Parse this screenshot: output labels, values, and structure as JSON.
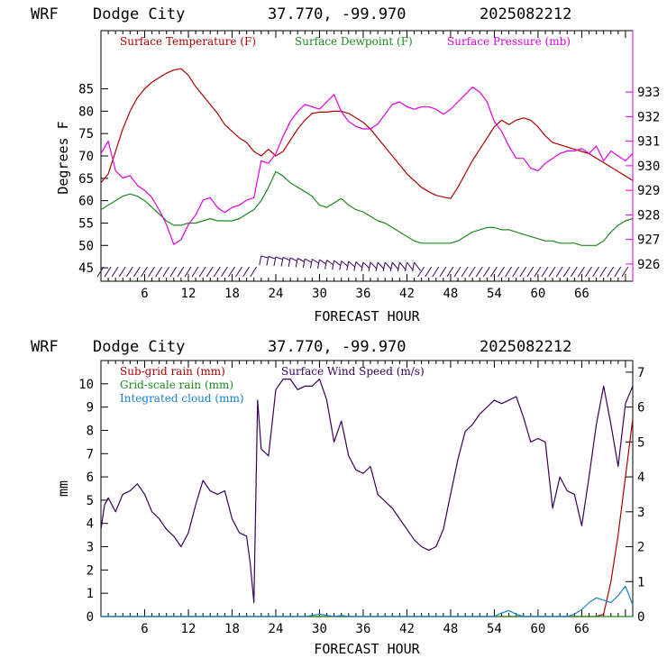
{
  "chart_data": [
    {
      "type": "line",
      "header": {
        "model": "WRF",
        "location": "Dodge City",
        "coords": "37.770, -99.970",
        "run": "2025082212"
      },
      "xlabel": "FORECAST HOUR",
      "ylabel": "Degrees F",
      "xlim": [
        0,
        73
      ],
      "ylim": [
        42,
        98
      ],
      "y2lim": [
        925.3,
        935.5
      ],
      "xticks": [
        6,
        12,
        18,
        24,
        30,
        36,
        42,
        48,
        54,
        60,
        66
      ],
      "xtick_labels": [
        "6",
        "12",
        "18",
        "24",
        "30",
        "36",
        "42",
        "48",
        "54",
        "60",
        "66"
      ],
      "yticks": [
        45,
        50,
        55,
        60,
        65,
        70,
        75,
        80,
        85
      ],
      "ytick_labels": [
        "45",
        "50",
        "55",
        "60",
        "65",
        "70",
        "75",
        "80",
        "85"
      ],
      "y2ticks": [
        926,
        927,
        928,
        929,
        930,
        931,
        932,
        933
      ],
      "y2tick_labels": [
        "926",
        "927",
        "928",
        "929",
        "930",
        "931",
        "932",
        "933"
      ],
      "legend_placement": "top",
      "colors": {
        "temp": "#b00000",
        "dew": "#1c8a1c",
        "pres": "#e000e0",
        "wind": "#3a0058"
      },
      "series": [
        {
          "name": "Surface Temperature (F)",
          "color": "#b00000",
          "axis": "left",
          "x": [
            0,
            1,
            2,
            3,
            4,
            5,
            6,
            7,
            8,
            9,
            10,
            11,
            12,
            13,
            14,
            15,
            16,
            17,
            18,
            19,
            20,
            21,
            22,
            23,
            24,
            25,
            26,
            27,
            28,
            29,
            30,
            31,
            32,
            33,
            34,
            35,
            36,
            37,
            38,
            39,
            40,
            41,
            42,
            43,
            44,
            45,
            46,
            47,
            48,
            49,
            50,
            51,
            52,
            53,
            54,
            55,
            56,
            57,
            58,
            59,
            60,
            61,
            62,
            63,
            64,
            65,
            66,
            67,
            68,
            69,
            70,
            71,
            72,
            73
          ],
          "y": [
            64,
            66,
            71,
            76,
            80,
            83,
            85,
            86.5,
            87.5,
            88.5,
            89.2,
            89.5,
            88,
            85.5,
            83.5,
            81.5,
            79.5,
            77,
            75.5,
            74,
            73,
            71,
            70,
            71.5,
            70,
            71,
            73.5,
            76,
            78,
            79.5,
            79.8,
            79.8,
            80,
            80,
            79.5,
            78.5,
            77.5,
            76,
            74,
            72,
            70,
            68,
            66,
            64.5,
            63,
            62,
            61.2,
            60.8,
            60.5,
            63,
            66,
            69,
            71.5,
            74,
            76.5,
            78,
            77,
            78,
            78.5,
            78,
            76.5,
            74.5,
            73,
            72.5,
            72,
            71.5,
            71,
            70.5,
            69.5,
            68.5,
            67.5,
            66.5,
            65.5,
            64.5
          ]
        },
        {
          "name": "Surface Dewpoint (F)",
          "color": "#1c8a1c",
          "axis": "left",
          "x": [
            0,
            1,
            2,
            3,
            4,
            5,
            6,
            7,
            8,
            9,
            10,
            11,
            12,
            13,
            14,
            15,
            16,
            17,
            18,
            19,
            20,
            21,
            22,
            23,
            24,
            25,
            26,
            27,
            28,
            29,
            30,
            31,
            32,
            33,
            34,
            35,
            36,
            37,
            38,
            39,
            40,
            41,
            42,
            43,
            44,
            45,
            46,
            47,
            48,
            49,
            50,
            51,
            52,
            53,
            54,
            55,
            56,
            57,
            58,
            59,
            60,
            61,
            62,
            63,
            64,
            65,
            66,
            67,
            68,
            69,
            70,
            71,
            72,
            73
          ],
          "y": [
            58,
            59,
            60,
            61,
            61.5,
            61,
            60,
            58.5,
            57,
            55.5,
            54.5,
            54.5,
            55,
            55,
            55.5,
            56,
            55.5,
            55.5,
            55.5,
            56,
            57,
            58,
            60,
            63,
            66.5,
            65.5,
            64,
            63,
            62,
            61,
            59,
            58.5,
            59.5,
            60.5,
            59,
            58,
            57.5,
            56.5,
            55.5,
            55,
            54,
            53,
            52,
            51,
            50.5,
            50.5,
            50.5,
            50.5,
            50.5,
            51,
            52,
            53,
            53.5,
            54,
            54,
            53.5,
            53.5,
            53,
            52.5,
            52,
            51.5,
            51,
            51,
            50.5,
            50.5,
            50.5,
            50,
            50,
            50,
            51,
            53,
            54.5,
            55.5,
            56
          ]
        },
        {
          "name": "Surface Pressure (mb)",
          "color": "#e000e0",
          "axis": "right",
          "x": [
            0,
            1,
            2,
            3,
            4,
            5,
            6,
            7,
            8,
            9,
            10,
            11,
            12,
            13,
            14,
            15,
            16,
            17,
            18,
            19,
            20,
            21,
            22,
            23,
            24,
            25,
            26,
            27,
            28,
            29,
            30,
            31,
            32,
            33,
            34,
            35,
            36,
            37,
            38,
            39,
            40,
            41,
            42,
            43,
            44,
            45,
            46,
            47,
            48,
            49,
            50,
            51,
            52,
            53,
            54,
            55,
            56,
            57,
            58,
            59,
            60,
            61,
            62,
            63,
            64,
            65,
            66,
            67,
            68,
            69,
            70,
            71,
            72,
            73
          ],
          "y": [
            930.5,
            931,
            929.8,
            929.5,
            929.6,
            929.2,
            929,
            928.7,
            928.2,
            927.6,
            926.8,
            927,
            927.6,
            928,
            928.6,
            928.7,
            928.3,
            928.1,
            928.3,
            928.4,
            928.6,
            928.7,
            930.2,
            930.1,
            930.5,
            931.2,
            931.8,
            932.2,
            932.5,
            932.4,
            932.3,
            932.6,
            932.9,
            932.2,
            931.8,
            931.6,
            931.5,
            931.5,
            931.7,
            932.1,
            932.5,
            932.6,
            932.4,
            932.3,
            932.4,
            932.4,
            932.3,
            932.1,
            932.3,
            932.6,
            932.9,
            933.2,
            933.0,
            932.6,
            931.8,
            931.4,
            930.8,
            930.3,
            930.3,
            929.9,
            929.8,
            930.1,
            930.3,
            930.5,
            930.6,
            930.6,
            930.7,
            930.5,
            930.8,
            930.2,
            930.6,
            930.4,
            930.2,
            930.5
          ]
        }
      ],
      "wind_barbs": {
        "color": "#3a0058",
        "hours_low": [
          0,
          1,
          2,
          3,
          4,
          5,
          6,
          7,
          8,
          9,
          10,
          11,
          12,
          13,
          14,
          15,
          16,
          17,
          18,
          19,
          20,
          21,
          44,
          45,
          46,
          47,
          48,
          49,
          50,
          51,
          52,
          53,
          54,
          55,
          56,
          57,
          58,
          59,
          60,
          61,
          62,
          63,
          64,
          65,
          66,
          67,
          68,
          69,
          70,
          71,
          72
        ],
        "hours_high": [
          22,
          23,
          24,
          25,
          26,
          27,
          28,
          29,
          30,
          31,
          32,
          33,
          34,
          35,
          36,
          37,
          38,
          39,
          40,
          41,
          42,
          43
        ]
      }
    },
    {
      "type": "line",
      "header": {
        "model": "WRF",
        "location": "Dodge City",
        "coords": "37.770, -99.970",
        "run": "2025082212"
      },
      "xlabel": "FORECAST HOUR",
      "ylabel": "mm",
      "xlim": [
        0,
        73
      ],
      "ylim": [
        0,
        11
      ],
      "y2lim": [
        0,
        7.333
      ],
      "xticks": [
        6,
        12,
        18,
        24,
        30,
        36,
        42,
        48,
        54,
        60,
        66
      ],
      "xtick_labels": [
        "6",
        "12",
        "18",
        "24",
        "30",
        "36",
        "42",
        "48",
        "54",
        "60",
        "66"
      ],
      "yticks": [
        0,
        1,
        2,
        3,
        4,
        5,
        6,
        7,
        8,
        9,
        10
      ],
      "ytick_labels": [
        "0",
        "1",
        "2",
        "3",
        "4",
        "5",
        "6",
        "7",
        "8",
        "9",
        "10"
      ],
      "y2ticks": [
        0,
        1,
        2,
        3,
        4,
        5,
        6,
        7
      ],
      "y2tick_labels": [
        "0",
        "1",
        "2",
        "3",
        "4",
        "5",
        "6",
        "7"
      ],
      "legend_placement": "top-left",
      "series": [
        {
          "name": "Sub-grid rain (mm)",
          "color": "#b00000",
          "axis": "left",
          "x": [
            0,
            66,
            67,
            68,
            69,
            70,
            71,
            72,
            73
          ],
          "y": [
            0,
            0,
            0,
            0,
            0.1,
            1.5,
            3.5,
            6.0,
            8.5
          ]
        },
        {
          "name": "Grid-scale rain (mm)",
          "color": "#1c8a1c",
          "axis": "left",
          "x": [
            0,
            73
          ],
          "y": [
            0,
            0
          ]
        },
        {
          "name": "Integrated cloud (mm)",
          "color": "#1a80d0",
          "axis": "left",
          "x": [
            0,
            28,
            29,
            30,
            31,
            32,
            33,
            34,
            54,
            55,
            56,
            57,
            58,
            64,
            65,
            66,
            67,
            68,
            69,
            70,
            71,
            72,
            73
          ],
          "y": [
            0,
            0,
            0.05,
            0.1,
            0.05,
            0,
            0.05,
            0,
            0,
            0.15,
            0.25,
            0.1,
            0,
            0,
            0.1,
            0.3,
            0.6,
            0.8,
            0.7,
            0.6,
            0.9,
            1.3,
            0.5
          ]
        },
        {
          "name": "Surface Wind Speed (m/s)",
          "color": "#3a0058",
          "axis": "right",
          "x": [
            0,
            0.5,
            1,
            2,
            3,
            4,
            5,
            6,
            7,
            8,
            9,
            10,
            11,
            12,
            13,
            14,
            15,
            16,
            17,
            18,
            19,
            20,
            20.5,
            21,
            21.5,
            22,
            23,
            24,
            25,
            26,
            27,
            28,
            29,
            30,
            31,
            32,
            33,
            34,
            35,
            36,
            37,
            38,
            39,
            40,
            41,
            42,
            43,
            44,
            45,
            46,
            47,
            48,
            49,
            50,
            51,
            52,
            53,
            54,
            55,
            56,
            57,
            58,
            59,
            60,
            61,
            62,
            63,
            64,
            65,
            66,
            67,
            68,
            69,
            70,
            71,
            72,
            73
          ],
          "y": [
            2.5,
            3.2,
            3.4,
            3.0,
            3.5,
            3.6,
            3.8,
            3.5,
            3.0,
            2.8,
            2.5,
            2.3,
            2.0,
            2.4,
            3.2,
            3.9,
            3.6,
            3.5,
            3.6,
            2.8,
            2.4,
            2.3,
            1.5,
            0.4,
            6.2,
            4.8,
            4.6,
            6.5,
            6.8,
            6.8,
            6.5,
            6.6,
            6.6,
            6.8,
            6.2,
            5.0,
            5.6,
            4.6,
            4.2,
            4.1,
            4.3,
            3.5,
            3.3,
            3.1,
            2.8,
            2.5,
            2.2,
            2.0,
            1.9,
            2.0,
            2.5,
            3.5,
            4.5,
            5.3,
            5.5,
            5.8,
            6.0,
            6.2,
            6.1,
            6.2,
            6.3,
            5.7,
            5.0,
            5.1,
            5.0,
            3.1,
            4.0,
            3.6,
            3.5,
            2.6,
            4.0,
            5.5,
            6.6,
            5.5,
            4.3,
            6.1,
            6.6
          ]
        }
      ]
    }
  ]
}
